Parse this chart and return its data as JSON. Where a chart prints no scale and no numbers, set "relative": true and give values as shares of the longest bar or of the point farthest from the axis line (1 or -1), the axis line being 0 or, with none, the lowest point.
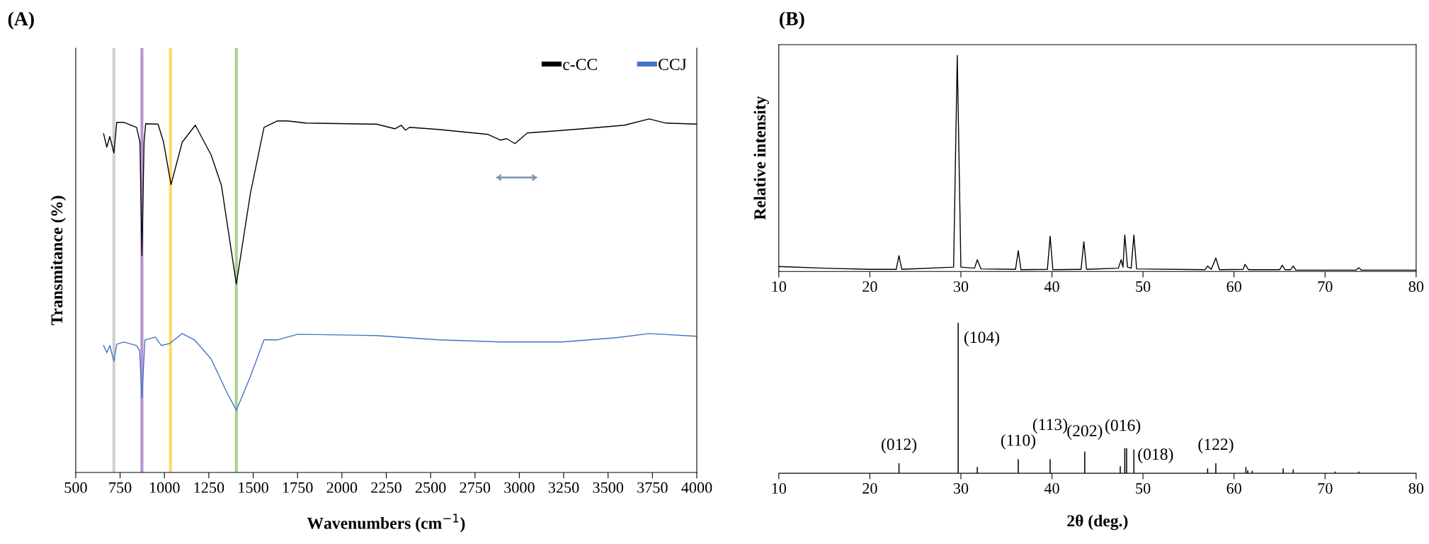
{
  "chart_data": [
    {
      "type": "line",
      "title": "(A)",
      "xlabel": "Wavenumbers (cm$^{−1}$)",
      "ylabel": "Transmitance (%)",
      "relative": true,
      "xlim": [
        500,
        4000
      ],
      "xticks": [
        500,
        750,
        1000,
        1250,
        1500,
        1750,
        2000,
        2250,
        2500,
        2750,
        3000,
        3250,
        3500,
        3750,
        4000
      ],
      "legend": "top right",
      "grid": false,
      "tick_labels": "x",
      "ref_lines": [
        {
          "axis": "x",
          "value": 715,
          "color": "#d0d0d0"
        },
        {
          "axis": "x",
          "value": 873,
          "color": "#b794d4"
        },
        {
          "axis": "x",
          "value": 1034,
          "color": "#ffd966"
        },
        {
          "axis": "x",
          "value": 1405,
          "color": "#a9d18e"
        }
      ],
      "series": [
        {
          "name": "c-CC",
          "color": "#000000",
          "x": [
            657,
            675,
            692,
            715,
            731,
            773,
            843,
            862,
            873,
            885,
            894,
            964,
            995,
            1037,
            1100,
            1174,
            1263,
            1321,
            1405,
            1484,
            1561,
            1635,
            1694,
            1798,
            2195,
            2299,
            2334,
            2358,
            2381,
            2544,
            2824,
            2894,
            2929,
            2975,
            3045,
            3360,
            3593,
            3732,
            3826,
            4000
          ],
          "values": [
            0.958,
            0.92,
            0.95,
            0.904,
            0.99,
            0.99,
            0.976,
            0.934,
            0.613,
            0.934,
            0.986,
            0.985,
            0.934,
            0.814,
            0.934,
            0.982,
            0.898,
            0.812,
            0.533,
            0.788,
            0.976,
            0.994,
            0.994,
            0.988,
            0.985,
            0.972,
            0.982,
            0.968,
            0.976,
            0.97,
            0.956,
            0.94,
            0.944,
            0.93,
            0.96,
            0.972,
            0.982,
            1.0,
            0.988,
            0.985
          ]
        },
        {
          "name": "CCJ",
          "color": "#4472c4",
          "x": [
            657,
            675,
            692,
            715,
            731,
            773,
            843,
            860,
            873,
            890,
            948,
            983,
            1030,
            1100,
            1169,
            1263,
            1356,
            1405,
            1484,
            1561,
            1635,
            1752,
            2195,
            2544,
            2894,
            3243,
            3546,
            3732,
            4000
          ],
          "values": [
            0.359,
            0.339,
            0.359,
            0.315,
            0.363,
            0.369,
            0.359,
            0.345,
            0.21,
            0.375,
            0.383,
            0.359,
            0.365,
            0.393,
            0.375,
            0.321,
            0.222,
            0.176,
            0.271,
            0.375,
            0.375,
            0.391,
            0.387,
            0.375,
            0.369,
            0.369,
            0.381,
            0.393,
            0.385
          ]
        }
      ]
    },
    {
      "type": "line",
      "title": "(B)",
      "ylabel": "Relative intensity",
      "relative": true,
      "xlim": [
        10,
        80
      ],
      "xticks": [
        10,
        20,
        30,
        40,
        50,
        60,
        70,
        80
      ],
      "grid": false,
      "tick_labels": "x",
      "series": [
        {
          "color": "#000000",
          "x": [
            10,
            15,
            20,
            22.9,
            23.2,
            23.5,
            29.2,
            29.6,
            30.0,
            31.5,
            31.8,
            32.2,
            36.0,
            36.3,
            36.6,
            39.5,
            39.8,
            40.1,
            43.2,
            43.5,
            43.8,
            47.3,
            47.6,
            47.8,
            48.0,
            48.3,
            48.7,
            49.0,
            49.3,
            56.8,
            57.1,
            57.5,
            58.0,
            58.4,
            61.0,
            61.2,
            61.6,
            65.0,
            65.3,
            65.6,
            66.2,
            66.5,
            66.8,
            73.4,
            73.7,
            74.0,
            80
          ],
          "values": [
            0.023,
            0.015,
            0.01,
            0.01,
            0.073,
            0.01,
            0.02,
            1.0,
            0.02,
            0.015,
            0.054,
            0.012,
            0.01,
            0.096,
            0.008,
            0.01,
            0.163,
            0.008,
            0.01,
            0.138,
            0.01,
            0.015,
            0.054,
            0.02,
            0.169,
            0.02,
            0.015,
            0.169,
            0.012,
            0.008,
            0.025,
            0.01,
            0.062,
            0.008,
            0.01,
            0.033,
            0.008,
            0.008,
            0.029,
            0.008,
            0.008,
            0.025,
            0.006,
            0.006,
            0.017,
            0.006,
            0.006
          ]
        }
      ]
    },
    {
      "type": "bar",
      "xlabel": "2θ (deg.)",
      "relative": true,
      "xlim": [
        10,
        80
      ],
      "xticks": [
        10,
        20,
        30,
        40,
        50,
        60,
        70,
        80
      ],
      "grid": false,
      "tick_labels": "x",
      "x": [
        23.2,
        29.7,
        31.8,
        36.3,
        39.8,
        43.6,
        47.5,
        48.0,
        48.2,
        49.0,
        57.1,
        58.0,
        61.3,
        61.5,
        62.0,
        65.4,
        66.5,
        71.1,
        73.7
      ],
      "values": [
        0.067,
        1.0,
        0.042,
        0.094,
        0.094,
        0.144,
        0.047,
        0.167,
        0.167,
        0.158,
        0.033,
        0.067,
        0.042,
        0.019,
        0.017,
        0.033,
        0.025,
        0.011,
        0.011
      ],
      "color": "#000000",
      "annotations": [
        {
          "text": "(012)",
          "x": 23.2,
          "y": 0.067
        },
        {
          "text": "(104)",
          "x": 29.7,
          "y": 1.0
        },
        {
          "text": "(110)",
          "x": 36.3,
          "y": 0.094
        },
        {
          "text": "(113)",
          "x": 39.8,
          "y": 0.094
        },
        {
          "text": "(202)",
          "x": 43.6,
          "y": 0.144
        },
        {
          "text": "(016)",
          "x": 48.0,
          "y": 0.167
        },
        {
          "text": "(018)",
          "x": 49.0,
          "y": 0.158
        },
        {
          "text": "(122)",
          "x": 58.0,
          "y": 0.067
        }
      ]
    }
  ]
}
